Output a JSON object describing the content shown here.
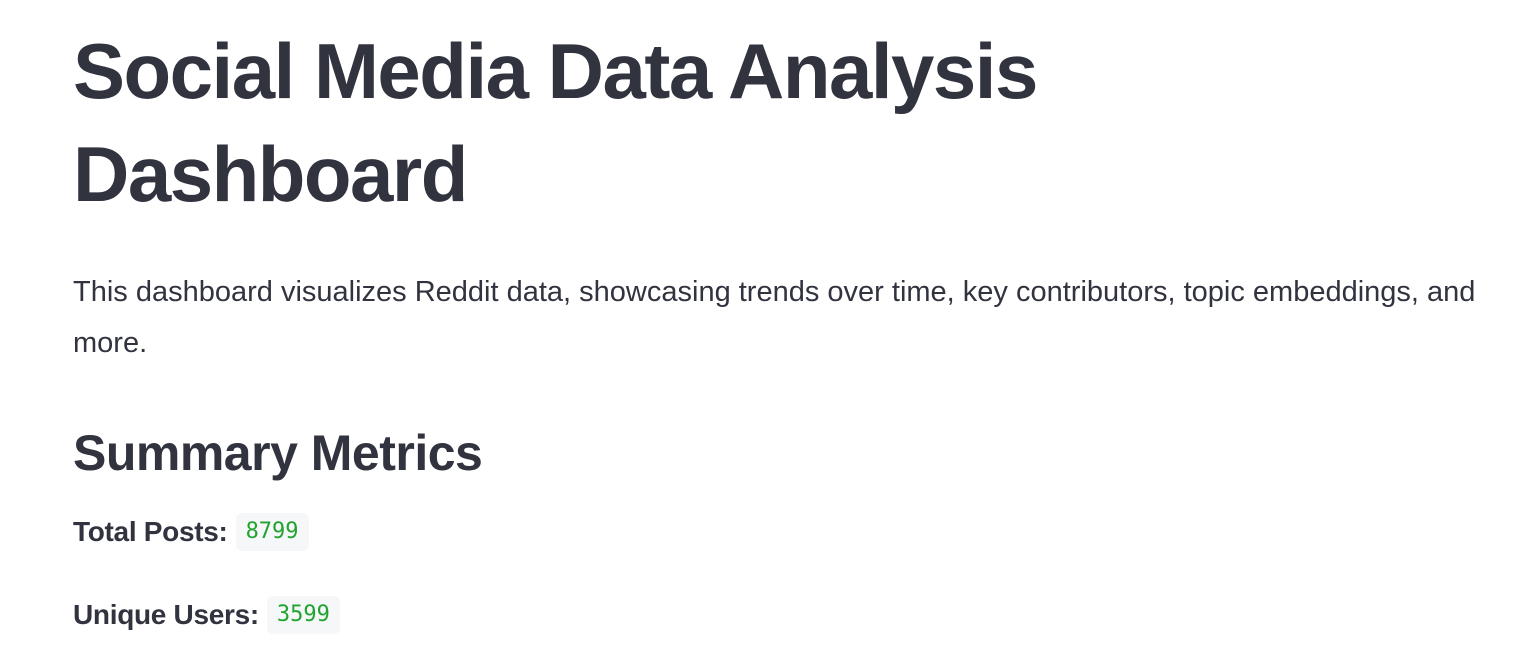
{
  "page": {
    "title": "Social Media Data Analysis Dashboard",
    "intro": "This dashboard visualizes Reddit data, showcasing trends over time, key contributors, topic embeddings, and more."
  },
  "summary": {
    "heading": "Summary Metrics",
    "metrics": [
      {
        "label": "Total Posts:",
        "value": "8799"
      },
      {
        "label": "Unique Users:",
        "value": "3599"
      }
    ]
  },
  "colors": {
    "text": "#31333f",
    "metric_value": "#21a330",
    "metric_value_bg": "#f6f7f8"
  }
}
